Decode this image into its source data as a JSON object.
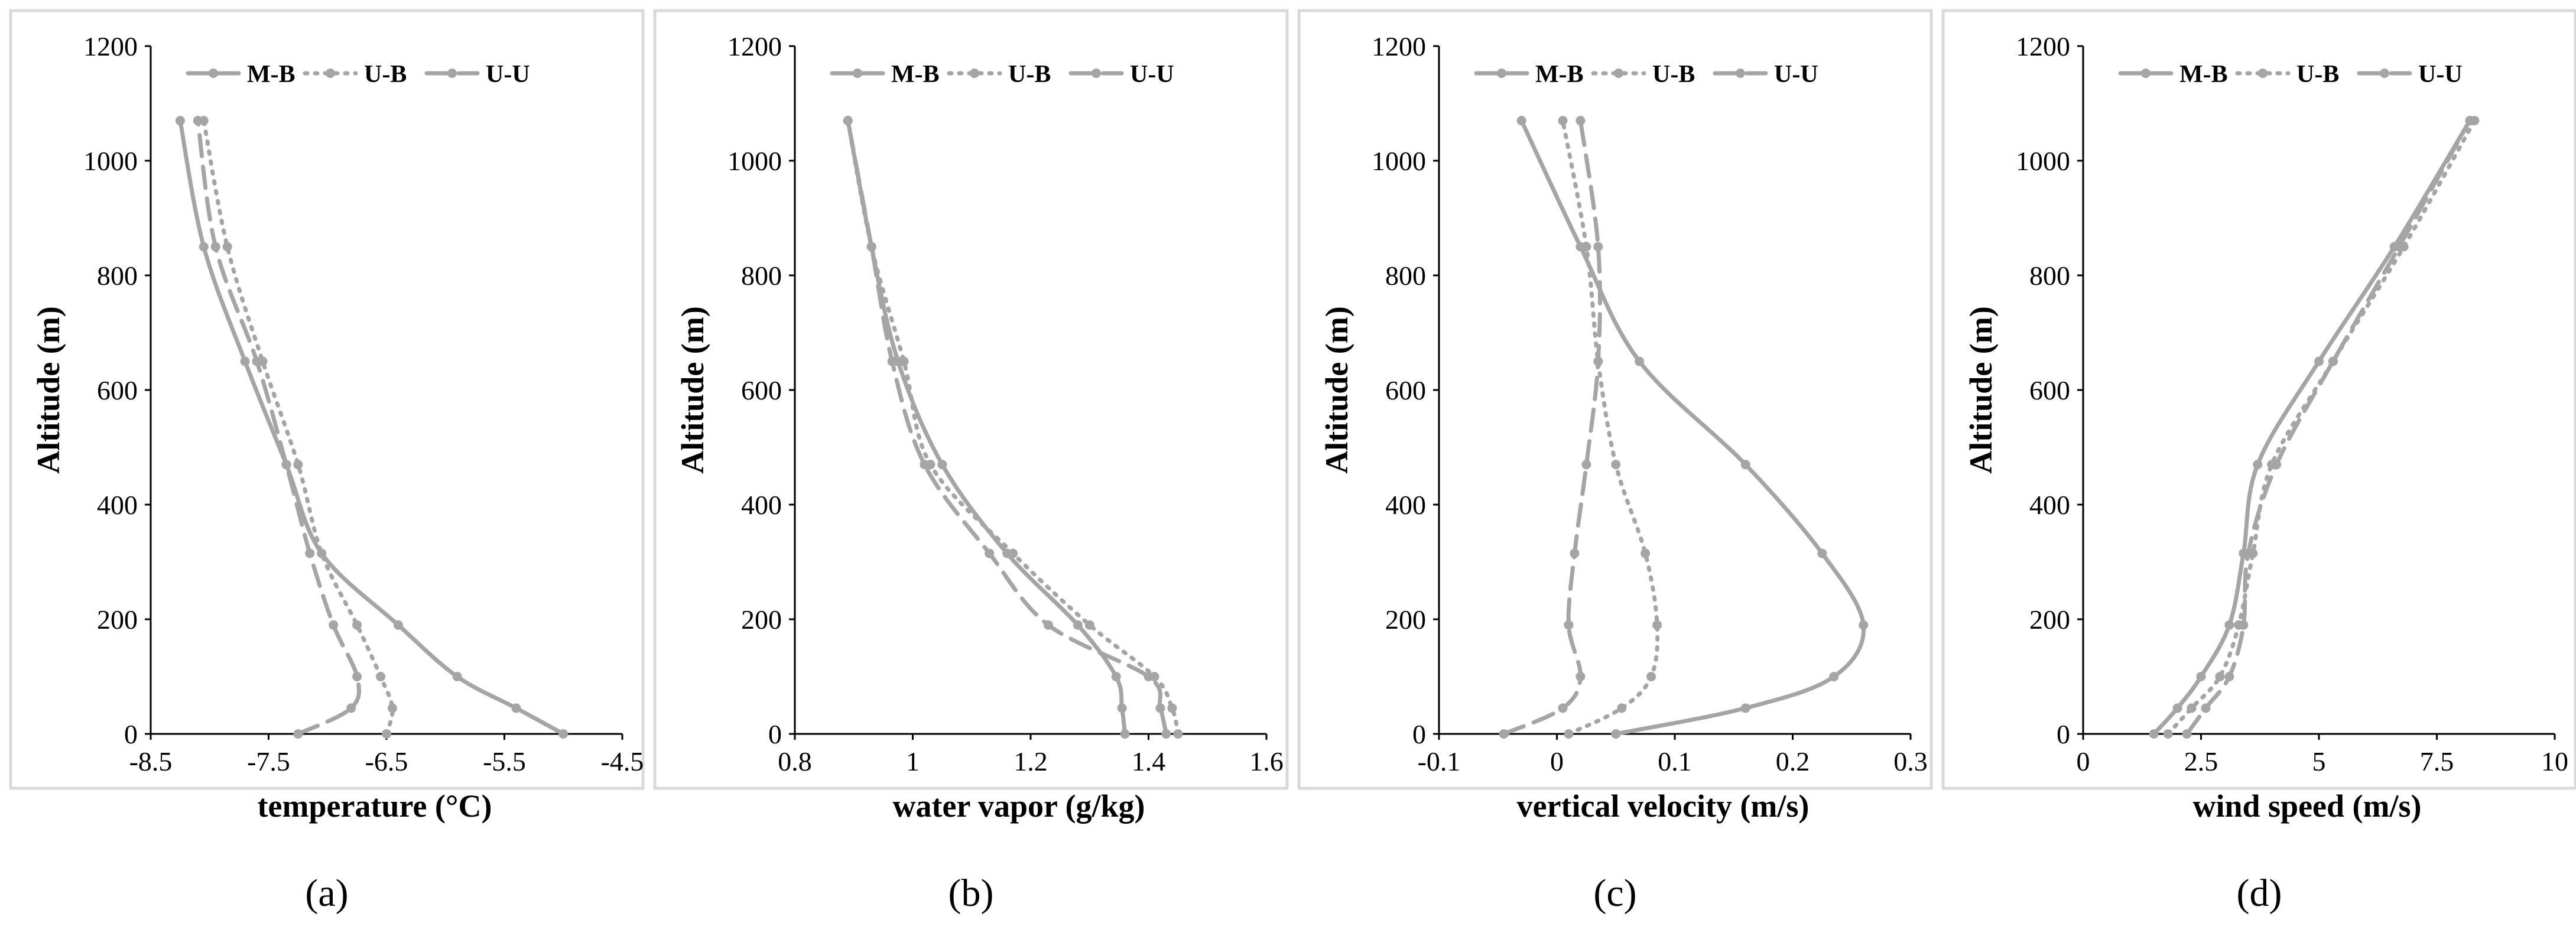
{
  "figure": {
    "series_color": "#a5a5a5",
    "line_styles": {
      "M-B": "solid",
      "U-B": "dotted",
      "U-U": "dashed"
    }
  },
  "chart_data": [
    {
      "type": "line",
      "panel_label": "(a)",
      "xlabel": "temperature (°C)",
      "ylabel": "Altitude (m)",
      "xlim": [
        -8.5,
        -4.5
      ],
      "ylim": [
        0,
        1200
      ],
      "xticks": [
        -8.5,
        -7.5,
        -6.5,
        -5.5,
        -4.5
      ],
      "xtick_labels": [
        "-8.5",
        "-7.5",
        "-6.5",
        "-5.5",
        "-4.5"
      ],
      "yticks": [
        0,
        200,
        400,
        600,
        800,
        1000,
        1200
      ],
      "ytick_labels": [
        "0",
        "200",
        "400",
        "600",
        "800",
        "1000",
        "1200"
      ],
      "legend": [
        "M-B",
        "U-B",
        "U-U"
      ],
      "series": [
        {
          "name": "M-B",
          "points": [
            [
              -5.0,
              0
            ],
            [
              -5.4,
              45
            ],
            [
              -5.9,
              100
            ],
            [
              -6.4,
              190
            ],
            [
              -7.05,
              315
            ],
            [
              -7.35,
              470
            ],
            [
              -7.7,
              650
            ],
            [
              -8.05,
              850
            ],
            [
              -8.25,
              1070
            ]
          ]
        },
        {
          "name": "U-B",
          "points": [
            [
              -6.5,
              0
            ],
            [
              -6.45,
              45
            ],
            [
              -6.55,
              100
            ],
            [
              -6.75,
              190
            ],
            [
              -7.05,
              315
            ],
            [
              -7.25,
              470
            ],
            [
              -7.55,
              650
            ],
            [
              -7.85,
              850
            ],
            [
              -8.05,
              1070
            ]
          ]
        },
        {
          "name": "U-U",
          "points": [
            [
              -7.25,
              0
            ],
            [
              -6.8,
              45
            ],
            [
              -6.75,
              100
            ],
            [
              -6.95,
              190
            ],
            [
              -7.15,
              315
            ],
            [
              -7.35,
              470
            ],
            [
              -7.6,
              650
            ],
            [
              -7.95,
              850
            ],
            [
              -8.1,
              1070
            ]
          ]
        }
      ]
    },
    {
      "type": "line",
      "panel_label": "(b)",
      "xlabel": "water vapor (g/kg)",
      "ylabel": "Altitude (m)",
      "xlim": [
        0.8,
        1.6
      ],
      "ylim": [
        0,
        1200
      ],
      "xticks": [
        0.8,
        1.0,
        1.2,
        1.4,
        1.6
      ],
      "xtick_labels": [
        "0.8",
        "1",
        "1.2",
        "1.4",
        "1.6"
      ],
      "yticks": [
        0,
        200,
        400,
        600,
        800,
        1000,
        1200
      ],
      "ytick_labels": [
        "0",
        "200",
        "400",
        "600",
        "800",
        "1000",
        "1200"
      ],
      "legend": [
        "M-B",
        "U-B",
        "U-U"
      ],
      "series": [
        {
          "name": "M-B",
          "points": [
            [
              1.36,
              0
            ],
            [
              1.355,
              45
            ],
            [
              1.345,
              100
            ],
            [
              1.28,
              190
            ],
            [
              1.16,
              315
            ],
            [
              1.05,
              470
            ],
            [
              0.975,
              650
            ],
            [
              0.93,
              850
            ],
            [
              0.89,
              1070
            ]
          ]
        },
        {
          "name": "U-B",
          "points": [
            [
              1.45,
              0
            ],
            [
              1.44,
              45
            ],
            [
              1.41,
              100
            ],
            [
              1.3,
              190
            ],
            [
              1.17,
              315
            ],
            [
              1.03,
              470
            ],
            [
              0.985,
              650
            ],
            [
              0.93,
              850
            ],
            [
              0.89,
              1070
            ]
          ]
        },
        {
          "name": "U-U",
          "points": [
            [
              1.43,
              0
            ],
            [
              1.42,
              45
            ],
            [
              1.4,
              100
            ],
            [
              1.23,
              190
            ],
            [
              1.13,
              315
            ],
            [
              1.02,
              470
            ],
            [
              0.965,
              650
            ],
            [
              0.93,
              850
            ],
            [
              0.89,
              1070
            ]
          ]
        }
      ]
    },
    {
      "type": "line",
      "panel_label": "(c)",
      "xlabel": "vertical velocity (m/s)",
      "ylabel": "Altitude (m)",
      "xlim": [
        -0.1,
        0.3
      ],
      "ylim": [
        0,
        1200
      ],
      "xticks": [
        -0.1,
        0.0,
        0.1,
        0.2,
        0.3
      ],
      "xtick_labels": [
        "-0.1",
        "0",
        "0.1",
        "0.2",
        "0.3"
      ],
      "yticks": [
        0,
        200,
        400,
        600,
        800,
        1000,
        1200
      ],
      "ytick_labels": [
        "0",
        "200",
        "400",
        "600",
        "800",
        "1000",
        "1200"
      ],
      "legend": [
        "M-B",
        "U-B",
        "U-U"
      ],
      "series": [
        {
          "name": "M-B",
          "points": [
            [
              0.05,
              0
            ],
            [
              0.16,
              45
            ],
            [
              0.235,
              100
            ],
            [
              0.26,
              190
            ],
            [
              0.225,
              315
            ],
            [
              0.16,
              470
            ],
            [
              0.07,
              650
            ],
            [
              0.02,
              850
            ],
            [
              -0.03,
              1070
            ]
          ]
        },
        {
          "name": "U-B",
          "points": [
            [
              0.01,
              0
            ],
            [
              0.055,
              45
            ],
            [
              0.08,
              100
            ],
            [
              0.085,
              190
            ],
            [
              0.075,
              315
            ],
            [
              0.05,
              470
            ],
            [
              0.035,
              650
            ],
            [
              0.025,
              850
            ],
            [
              0.005,
              1070
            ]
          ]
        },
        {
          "name": "U-U",
          "points": [
            [
              -0.045,
              0
            ],
            [
              0.005,
              45
            ],
            [
              0.02,
              100
            ],
            [
              0.01,
              190
            ],
            [
              0.015,
              315
            ],
            [
              0.025,
              470
            ],
            [
              0.035,
              650
            ],
            [
              0.035,
              850
            ],
            [
              0.02,
              1070
            ]
          ]
        }
      ]
    },
    {
      "type": "line",
      "panel_label": "(d)",
      "xlabel": "wind speed (m/s)",
      "ylabel": "Altitude (m)",
      "xlim": [
        0,
        10
      ],
      "ylim": [
        0,
        1200
      ],
      "xticks": [
        0,
        2.5,
        5,
        7.5,
        10
      ],
      "xtick_labels": [
        "0",
        "2.5",
        "5",
        "7.5",
        "10"
      ],
      "yticks": [
        0,
        200,
        400,
        600,
        800,
        1000,
        1200
      ],
      "ytick_labels": [
        "0",
        "200",
        "400",
        "600",
        "800",
        "1000",
        "1200"
      ],
      "legend": [
        "M-B",
        "U-B",
        "U-U"
      ],
      "series": [
        {
          "name": "M-B",
          "points": [
            [
              1.5,
              0
            ],
            [
              2.0,
              45
            ],
            [
              2.5,
              100
            ],
            [
              3.1,
              190
            ],
            [
              3.4,
              315
            ],
            [
              3.7,
              470
            ],
            [
              5.0,
              650
            ],
            [
              6.6,
              850
            ],
            [
              8.2,
              1070
            ]
          ]
        },
        {
          "name": "U-B",
          "points": [
            [
              1.8,
              0
            ],
            [
              2.3,
              45
            ],
            [
              2.9,
              100
            ],
            [
              3.3,
              190
            ],
            [
              3.6,
              315
            ],
            [
              4.0,
              470
            ],
            [
              5.3,
              650
            ],
            [
              6.8,
              850
            ],
            [
              8.3,
              1070
            ]
          ]
        },
        {
          "name": "U-U",
          "points": [
            [
              2.2,
              0
            ],
            [
              2.6,
              45
            ],
            [
              3.1,
              100
            ],
            [
              3.4,
              190
            ],
            [
              3.5,
              315
            ],
            [
              4.1,
              470
            ],
            [
              5.3,
              650
            ],
            [
              6.7,
              850
            ],
            [
              8.2,
              1070
            ]
          ]
        }
      ]
    }
  ]
}
